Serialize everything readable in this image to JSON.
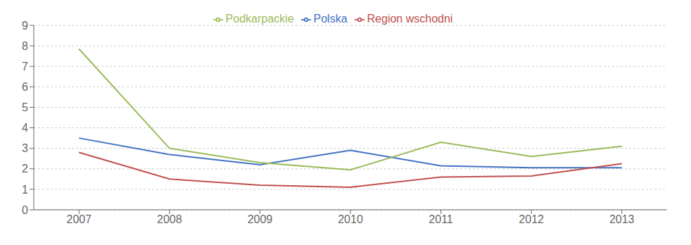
{
  "chart_data": {
    "type": "line",
    "x": [
      2007,
      2008,
      2009,
      2010,
      2011,
      2012,
      2013
    ],
    "xlim": [
      2006.5,
      2013.5
    ],
    "xticks": [
      2007,
      2008,
      2009,
      2010,
      2011,
      2012,
      2013
    ],
    "ylim": [
      0,
      9
    ],
    "yticks": [
      0,
      1,
      2,
      3,
      4,
      5,
      6,
      7,
      8,
      9
    ],
    "grid": true,
    "legend": "top",
    "series": [
      {
        "name": "Polska",
        "color": "#4472C4",
        "values": [
          3.5,
          2.7,
          2.2,
          2.9,
          2.15,
          2.05,
          2.05
        ]
      },
      {
        "name": "Region wschodni",
        "color": "#C0504D",
        "values": [
          2.8,
          1.5,
          1.2,
          1.1,
          1.6,
          1.65,
          2.25
        ]
      },
      {
        "name": "Podkarpackie",
        "color": "#9BBB59",
        "values": [
          7.85,
          3.0,
          2.3,
          1.95,
          3.3,
          2.6,
          3.1
        ]
      }
    ]
  }
}
